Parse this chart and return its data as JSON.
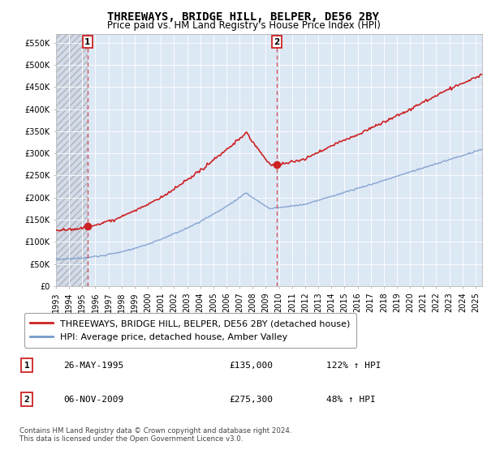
{
  "title": "THREEWAYS, BRIDGE HILL, BELPER, DE56 2BY",
  "subtitle": "Price paid vs. HM Land Registry's House Price Index (HPI)",
  "ylim": [
    0,
    570000
  ],
  "yticks": [
    0,
    50000,
    100000,
    150000,
    200000,
    250000,
    300000,
    350000,
    400000,
    450000,
    500000,
    550000
  ],
  "ytick_labels": [
    "£0",
    "£50K",
    "£100K",
    "£150K",
    "£200K",
    "£250K",
    "£300K",
    "£350K",
    "£400K",
    "£450K",
    "£500K",
    "£550K"
  ],
  "xlim_start": 1993.0,
  "xlim_end": 2025.5,
  "xticks": [
    1993,
    1994,
    1995,
    1996,
    1997,
    1998,
    1999,
    2000,
    2001,
    2002,
    2003,
    2004,
    2005,
    2006,
    2007,
    2008,
    2009,
    2010,
    2011,
    2012,
    2013,
    2014,
    2015,
    2016,
    2017,
    2018,
    2019,
    2020,
    2021,
    2022,
    2023,
    2024,
    2025
  ],
  "sale1_x": 1995.4,
  "sale1_y": 135000,
  "sale1_label": "1",
  "sale2_x": 2009.85,
  "sale2_y": 275300,
  "sale2_label": "2",
  "red_line_color": "#cc2222",
  "blue_line_color": "#7799cc",
  "dashed_line_color": "#cc2222",
  "plot_bg_color": "#dde8f5",
  "hatch_color": "#c8c8c8",
  "legend_label_red": "THREEWAYS, BRIDGE HILL, BELPER, DE56 2BY (detached house)",
  "legend_label_blue": "HPI: Average price, detached house, Amber Valley",
  "table_entries": [
    {
      "num": "1",
      "date": "26-MAY-1995",
      "price": "£135,000",
      "change": "122% ↑ HPI"
    },
    {
      "num": "2",
      "date": "06-NOV-2009",
      "price": "£275,300",
      "change": "48% ↑ HPI"
    }
  ],
  "footer": "Contains HM Land Registry data © Crown copyright and database right 2024.\nThis data is licensed under the Open Government Licence v3.0.",
  "title_fontsize": 10,
  "subtitle_fontsize": 8.5,
  "axis_fontsize": 7,
  "legend_fontsize": 8
}
